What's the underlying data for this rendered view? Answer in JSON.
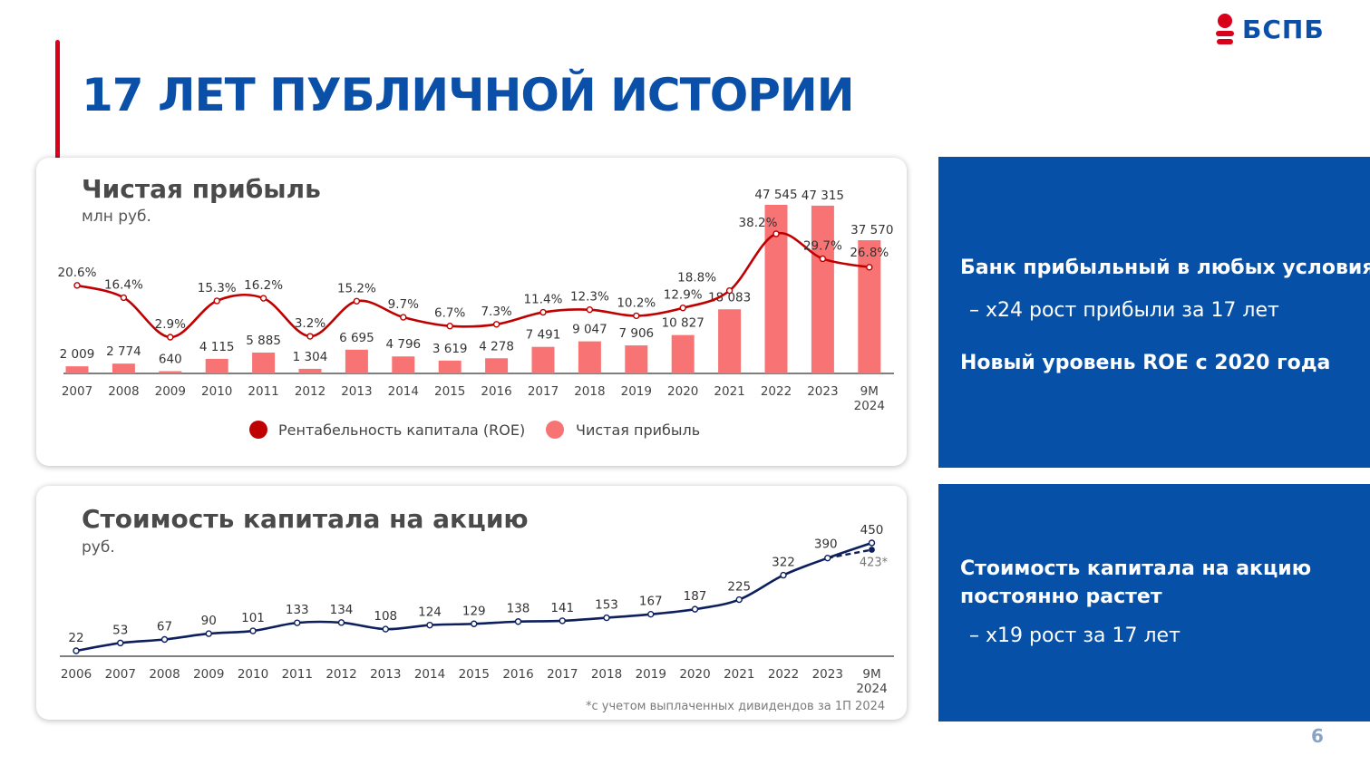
{
  "title": "17 ЛЕТ ПУБЛИЧНОЙ ИСТОРИИ",
  "logo": {
    "text": "БСПБ"
  },
  "page_number": "6",
  "colors": {
    "brand_blue": "#0a4fa8",
    "panel_blue": "#0650a8",
    "accent_red": "#d9001b",
    "roe_line": "#c00000",
    "profit_bar": "#f87474",
    "equity_line": "#0d1f5c"
  },
  "profit_card": {
    "title": "Чистая прибыль",
    "unit": "млн руб."
  },
  "equity_card": {
    "title": "Стоимость капитала на акцию",
    "unit": "руб.",
    "footnote": "*с учетом выплаченных дивидендов за 1П 2024"
  },
  "panel_top": {
    "heading1": "Банк прибыльный в любых условиях",
    "bullet1": "–   x24 рост прибыли за 17 лет",
    "heading2": "Новый уровень ROE с 2020 года"
  },
  "panel_bottom": {
    "heading_line1": "Стоимость капитала на акцию",
    "heading_line2": "постоянно растет",
    "bullet1": "–   x19 рост за 17 лет"
  },
  "chart_data": [
    {
      "type": "bar",
      "title": "Чистая прибыль",
      "subtitle": "млн руб.",
      "categories": [
        "2007",
        "2008",
        "2009",
        "2010",
        "2011",
        "2012",
        "2013",
        "2014",
        "2015",
        "2016",
        "2017",
        "2018",
        "2019",
        "2020",
        "2021",
        "2022",
        "2023",
        "9M 2024"
      ],
      "series": [
        {
          "name": "Чистая прибыль",
          "type": "bar",
          "values": [
            2009,
            2774,
            640,
            4115,
            5885,
            1304,
            6695,
            4796,
            3619,
            4278,
            7491,
            9047,
            7906,
            10827,
            18083,
            47545,
            47315,
            37570
          ],
          "labels": [
            "2 009",
            "2 774",
            "640",
            "4 115",
            "5 885",
            "1 304",
            "6 695",
            "4 796",
            "3 619",
            "4 278",
            "7 491",
            "9 047",
            "7 906",
            "10 827",
            "18 083",
            "47 545",
            "47 315",
            "37 570"
          ]
        },
        {
          "name": "Рентабельность капитала (ROE)",
          "type": "line",
          "values": [
            20.6,
            16.4,
            2.9,
            15.3,
            16.2,
            3.2,
            15.2,
            9.7,
            6.7,
            7.3,
            11.4,
            12.3,
            10.2,
            12.9,
            18.8,
            38.2,
            29.7,
            26.8
          ],
          "labels": [
            "20.6%",
            "16.4%",
            "2.9%",
            "15.3%",
            "16.2%",
            "3.2%",
            "15.2%",
            "9.7%",
            "6.7%",
            "7.3%",
            "11.4%",
            "12.3%",
            "10.2%",
            "12.9%",
            "18.8%",
            "38.2%",
            "29.7%",
            "26.8%"
          ]
        }
      ],
      "legend": [
        "Рентабельность капитала (ROE)",
        "Чистая прибыль"
      ],
      "legend_position": "bottom",
      "grid": false
    },
    {
      "type": "line",
      "title": "Стоимость капитала на акцию",
      "subtitle": "руб.",
      "categories": [
        "2006",
        "2007",
        "2008",
        "2009",
        "2010",
        "2011",
        "2012",
        "2013",
        "2014",
        "2015",
        "2016",
        "2017",
        "2018",
        "2019",
        "2020",
        "2021",
        "2022",
        "2023",
        "9M 2024"
      ],
      "series": [
        {
          "name": "",
          "values": [
            22,
            53,
            67,
            90,
            101,
            133,
            134,
            108,
            124,
            129,
            138,
            141,
            153,
            167,
            187,
            225,
            322,
            390,
            450
          ],
          "labels": [
            "22",
            "53",
            "67",
            "90",
            "101",
            "133",
            "134",
            "108",
            "124",
            "129",
            "138",
            "141",
            "153",
            "167",
            "187",
            "225",
            "322",
            "390",
            "450"
          ]
        }
      ],
      "adjusted_point": {
        "category": "9M 2024",
        "value": 423,
        "label": "423*"
      },
      "grid": false
    }
  ]
}
